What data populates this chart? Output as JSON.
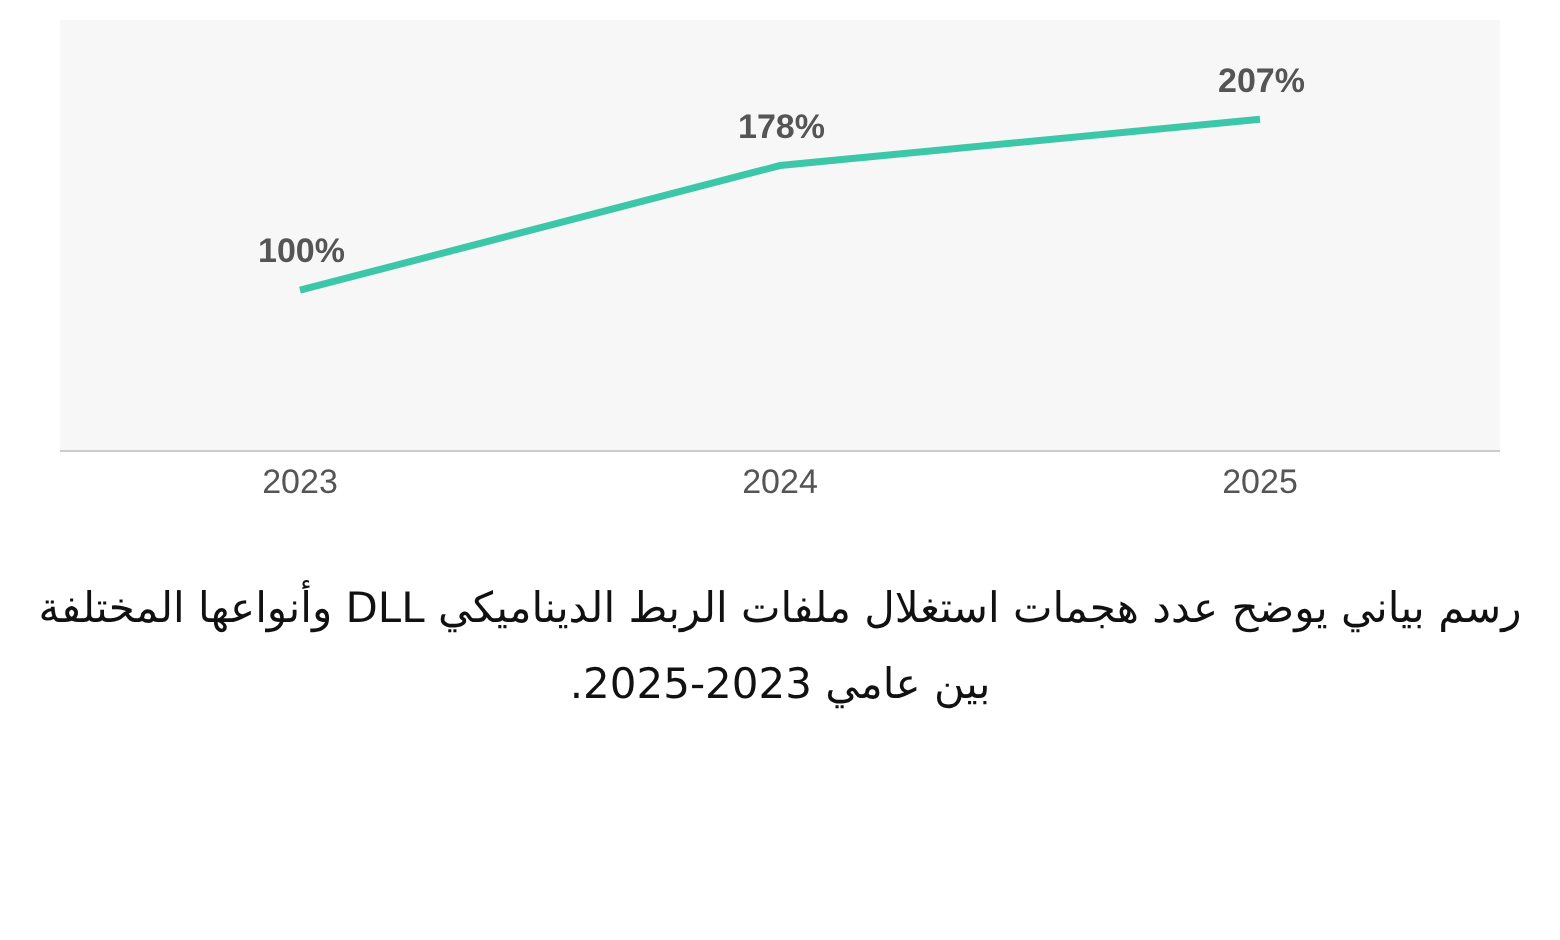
{
  "chart_data": {
    "type": "line",
    "title": "رسم بياني يوضح عدد هجمات استغلال ملفات الربط الديناميكي DLL وأنواعها المختلفة بين عامي 2023-2025.",
    "categories": [
      "2023",
      "2024",
      "2025"
    ],
    "series": [
      {
        "color": "#3cc8a8",
        "values": [
          100,
          178,
          207
        ],
        "value_labels": [
          "100%",
          "178%",
          "207%"
        ]
      }
    ],
    "marker": "none",
    "grid": false
  }
}
